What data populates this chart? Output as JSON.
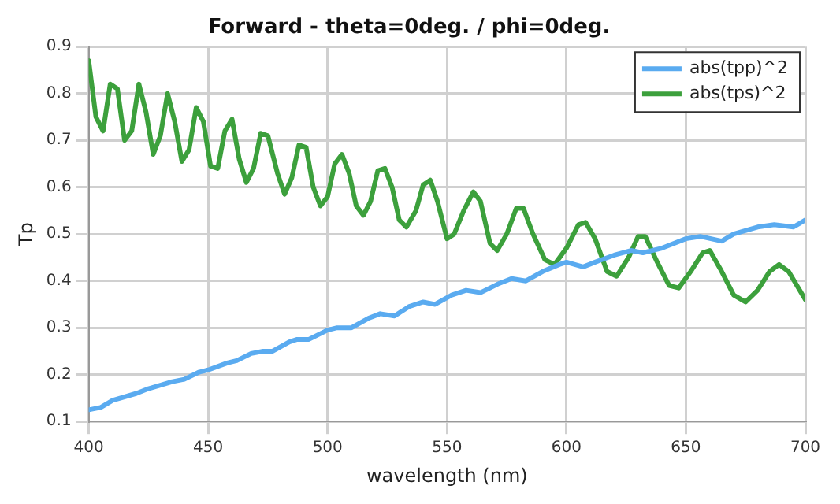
{
  "chart_data": {
    "type": "line",
    "title": "Forward - theta=0deg. / phi=0deg.",
    "xlabel": "wavelength (nm)",
    "ylabel": "Tp",
    "xlim": [
      400,
      700
    ],
    "xticks": [
      400,
      450,
      500,
      550,
      600,
      650,
      700
    ],
    "ylim": [
      0.1,
      0.9
    ],
    "yticks": [
      0.1,
      0.2,
      0.3,
      0.4,
      0.5,
      0.6,
      0.7,
      0.8,
      0.9
    ],
    "grid": true,
    "legend": "top right",
    "marker": "none",
    "line_style": "solid",
    "series": [
      {
        "name": "abs(tpp)^2",
        "color": "#5aabf0",
        "x": [
          400,
          405,
          410,
          420,
          425,
          435,
          440,
          446,
          450,
          458,
          462,
          468,
          473,
          477,
          484,
          487,
          492,
          500,
          504,
          510,
          517,
          522,
          528,
          534,
          540,
          545,
          552,
          558,
          564,
          572,
          577,
          583,
          590,
          597,
          600,
          607,
          612,
          620,
          627,
          632,
          640,
          650,
          656,
          665,
          670,
          680,
          687,
          695,
          700
        ],
        "values": [
          0.125,
          0.13,
          0.145,
          0.16,
          0.17,
          0.185,
          0.19,
          0.205,
          0.21,
          0.225,
          0.23,
          0.245,
          0.25,
          0.25,
          0.27,
          0.275,
          0.275,
          0.295,
          0.3,
          0.3,
          0.32,
          0.33,
          0.325,
          0.345,
          0.355,
          0.35,
          0.37,
          0.38,
          0.375,
          0.395,
          0.405,
          0.4,
          0.42,
          0.435,
          0.44,
          0.43,
          0.44,
          0.455,
          0.465,
          0.46,
          0.47,
          0.49,
          0.495,
          0.485,
          0.5,
          0.515,
          0.52,
          0.515,
          0.53
        ]
      },
      {
        "name": "abs(tps)^2",
        "color": "#3ca03c",
        "x": [
          400,
          403,
          406,
          409,
          412,
          415,
          418,
          421,
          424,
          427,
          430,
          433,
          436,
          439,
          442,
          445,
          448,
          451,
          454,
          457,
          460,
          463,
          466,
          469,
          472,
          475,
          479,
          482,
          485,
          488,
          491,
          494,
          497,
          500,
          503,
          506,
          509,
          512,
          515,
          518,
          521,
          524,
          527,
          530,
          533,
          537,
          540,
          543,
          546,
          550,
          553,
          557,
          561,
          564,
          568,
          571,
          575,
          579,
          582,
          586,
          591,
          595,
          600,
          605,
          608,
          612,
          617,
          621,
          626,
          630,
          633,
          638,
          643,
          647,
          652,
          657,
          660,
          665,
          670,
          675,
          680,
          685,
          689,
          693,
          700
        ],
        "values": [
          0.87,
          0.75,
          0.72,
          0.82,
          0.81,
          0.7,
          0.72,
          0.82,
          0.76,
          0.67,
          0.71,
          0.8,
          0.74,
          0.655,
          0.68,
          0.77,
          0.74,
          0.645,
          0.64,
          0.72,
          0.745,
          0.66,
          0.61,
          0.64,
          0.715,
          0.71,
          0.63,
          0.585,
          0.62,
          0.69,
          0.685,
          0.6,
          0.56,
          0.58,
          0.65,
          0.67,
          0.63,
          0.56,
          0.54,
          0.57,
          0.635,
          0.64,
          0.6,
          0.53,
          0.515,
          0.55,
          0.605,
          0.615,
          0.57,
          0.49,
          0.5,
          0.55,
          0.59,
          0.57,
          0.48,
          0.465,
          0.5,
          0.555,
          0.555,
          0.5,
          0.445,
          0.435,
          0.47,
          0.52,
          0.525,
          0.49,
          0.42,
          0.41,
          0.45,
          0.495,
          0.495,
          0.44,
          0.39,
          0.385,
          0.42,
          0.46,
          0.465,
          0.42,
          0.37,
          0.355,
          0.38,
          0.42,
          0.435,
          0.42,
          0.36
        ]
      }
    ]
  }
}
